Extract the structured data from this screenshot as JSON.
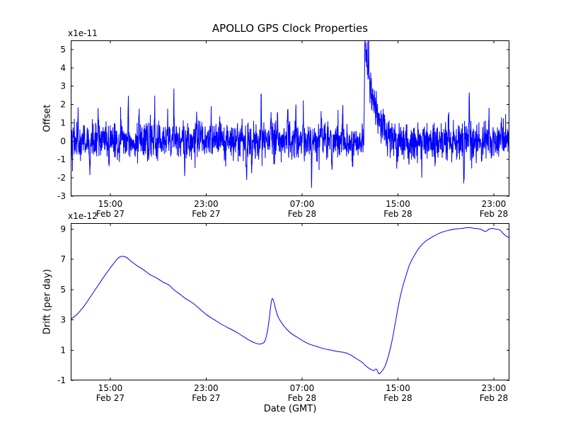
{
  "chart_data": {
    "type": "line",
    "title": "APOLLO GPS Clock Properties",
    "xlabel": "Date (GMT)",
    "line_color": "#0000ff",
    "x_axis_note": "hours since Feb 27 00:00 GMT",
    "charts": [
      {
        "name": "offset",
        "ylabel": "Offset",
        "scale_label": "x1e-11",
        "x_domain": [
          11.7,
          48.3
        ],
        "ylim": [
          -3,
          5.5
        ],
        "yticks": [
          -3,
          -2,
          -1,
          0,
          1,
          2,
          3,
          4,
          5
        ],
        "xticks": [
          {
            "x": 15,
            "time": "15:00",
            "date": "Feb 27"
          },
          {
            "x": 23,
            "time": "23:00",
            "date": "Feb 27"
          },
          {
            "x": 31,
            "time": "07:00",
            "date": "Feb 28"
          },
          {
            "x": 39,
            "time": "15:00",
            "date": "Feb 28"
          },
          {
            "x": 47,
            "time": "23:00",
            "date": "Feb 28"
          }
        ],
        "signal": {
          "kind": "noise",
          "baseline": 0,
          "std": 0.5,
          "n": 2200,
          "seed": 42,
          "spikes": [
            {
              "x": 12.3,
              "a": 1.1
            },
            {
              "x": 13.3,
              "a": -2.3
            },
            {
              "x": 14.0,
              "a": 1.3
            },
            {
              "x": 14.9,
              "a": -1.4
            },
            {
              "x": 15.9,
              "a": 1.6
            },
            {
              "x": 16.5,
              "a": 1.8
            },
            {
              "x": 17.4,
              "a": 1.9
            },
            {
              "x": 18.2,
              "a": -1.3
            },
            {
              "x": 18.7,
              "a": 1.7
            },
            {
              "x": 19.8,
              "a": 1.5
            },
            {
              "x": 20.3,
              "a": 2.1
            },
            {
              "x": 21.2,
              "a": -1.3
            },
            {
              "x": 22.2,
              "a": 1.5
            },
            {
              "x": 23.4,
              "a": 1.4
            },
            {
              "x": 24.6,
              "a": -1.3
            },
            {
              "x": 25.6,
              "a": 1.3
            },
            {
              "x": 26.35,
              "a": -2.4
            },
            {
              "x": 26.8,
              "a": -1.9
            },
            {
              "x": 27.6,
              "a": 1.9
            },
            {
              "x": 28.4,
              "a": 1.5
            },
            {
              "x": 28.95,
              "a": 2.2
            },
            {
              "x": 29.8,
              "a": 2.2
            },
            {
              "x": 30.5,
              "a": 1.5
            },
            {
              "x": 31.1,
              "a": 1.9
            },
            {
              "x": 31.8,
              "a": -2.2
            },
            {
              "x": 32.6,
              "a": 1.7
            },
            {
              "x": 33.5,
              "a": -1.6
            },
            {
              "x": 34.4,
              "a": 1.6
            },
            {
              "x": 35.2,
              "a": -1.3
            },
            {
              "x": 36.55,
              "a": 1.6
            },
            {
              "x": 36.9,
              "a": 1.2
            },
            {
              "x": 37.8,
              "a": 1.4
            },
            {
              "x": 38.9,
              "a": -1.2
            },
            {
              "x": 39.9,
              "a": -1.5
            },
            {
              "x": 41.0,
              "a": -1.7
            },
            {
              "x": 42.1,
              "a": -1.2
            },
            {
              "x": 43.2,
              "a": 1.3
            },
            {
              "x": 44.5,
              "a": -2.6
            },
            {
              "x": 44.95,
              "a": 2.9
            },
            {
              "x": 46.0,
              "a": -1.2
            },
            {
              "x": 46.6,
              "a": 1.4
            },
            {
              "x": 47.6,
              "a": 1.3
            }
          ],
          "big_spike": {
            "x": 36.25,
            "a": 5.5,
            "tau": 0.7
          }
        }
      },
      {
        "name": "drift",
        "ylabel": "Drift (per day)",
        "scale_label": "x1e-12",
        "x_domain": [
          11.7,
          48.3
        ],
        "ylim": [
          -1,
          9.4
        ],
        "yticks": [
          -1,
          1,
          3,
          5,
          7,
          9
        ],
        "xticks": [
          {
            "x": 15,
            "time": "15:00",
            "date": "Feb 27"
          },
          {
            "x": 23,
            "time": "23:00",
            "date": "Feb 27"
          },
          {
            "x": 31,
            "time": "07:00",
            "date": "Feb 28"
          },
          {
            "x": 39,
            "time": "15:00",
            "date": "Feb 28"
          },
          {
            "x": 47,
            "time": "23:00",
            "date": "Feb 28"
          }
        ],
        "signal": {
          "kind": "points",
          "points": [
            [
              11.7,
              3.05
            ],
            [
              12.2,
              3.35
            ],
            [
              12.8,
              3.9
            ],
            [
              13.4,
              4.6
            ],
            [
              14.0,
              5.3
            ],
            [
              14.6,
              6.0
            ],
            [
              15.2,
              6.65
            ],
            [
              15.6,
              7.05
            ],
            [
              15.9,
              7.2
            ],
            [
              16.3,
              7.15
            ],
            [
              16.7,
              6.9
            ],
            [
              17.2,
              6.6
            ],
            [
              17.8,
              6.3
            ],
            [
              18.3,
              6.0
            ],
            [
              18.9,
              5.75
            ],
            [
              19.4,
              5.5
            ],
            [
              19.9,
              5.3
            ],
            [
              20.3,
              5.0
            ],
            [
              20.8,
              4.7
            ],
            [
              21.3,
              4.4
            ],
            [
              21.9,
              4.1
            ],
            [
              22.5,
              3.7
            ],
            [
              23.1,
              3.3
            ],
            [
              23.7,
              3.0
            ],
            [
              24.3,
              2.7
            ],
            [
              24.9,
              2.45
            ],
            [
              25.5,
              2.2
            ],
            [
              26.0,
              1.95
            ],
            [
              26.5,
              1.7
            ],
            [
              27.0,
              1.5
            ],
            [
              27.4,
              1.4
            ],
            [
              27.7,
              1.45
            ],
            [
              27.9,
              1.6
            ],
            [
              28.1,
              2.2
            ],
            [
              28.25,
              3.0
            ],
            [
              28.4,
              4.0
            ],
            [
              28.5,
              4.4
            ],
            [
              28.65,
              4.2
            ],
            [
              28.8,
              3.7
            ],
            [
              29.0,
              3.2
            ],
            [
              29.3,
              2.8
            ],
            [
              29.7,
              2.4
            ],
            [
              30.1,
              2.1
            ],
            [
              30.6,
              1.85
            ],
            [
              31.1,
              1.6
            ],
            [
              31.6,
              1.4
            ],
            [
              32.2,
              1.25
            ],
            [
              32.8,
              1.1
            ],
            [
              33.4,
              1.0
            ],
            [
              34.0,
              0.9
            ],
            [
              34.5,
              0.85
            ],
            [
              35.0,
              0.7
            ],
            [
              35.5,
              0.45
            ],
            [
              36.0,
              0.2
            ],
            [
              36.4,
              -0.1
            ],
            [
              36.8,
              -0.3
            ],
            [
              37.0,
              -0.35
            ],
            [
              37.2,
              -0.25
            ],
            [
              37.4,
              -0.55
            ],
            [
              37.6,
              -0.45
            ],
            [
              37.9,
              -0.1
            ],
            [
              38.2,
              0.6
            ],
            [
              38.5,
              1.6
            ],
            [
              38.8,
              2.9
            ],
            [
              39.1,
              4.2
            ],
            [
              39.4,
              5.2
            ],
            [
              39.7,
              6.0
            ],
            [
              40.0,
              6.7
            ],
            [
              40.4,
              7.3
            ],
            [
              40.8,
              7.8
            ],
            [
              41.3,
              8.2
            ],
            [
              41.9,
              8.5
            ],
            [
              42.5,
              8.75
            ],
            [
              43.1,
              8.9
            ],
            [
              43.7,
              9.0
            ],
            [
              44.3,
              9.05
            ],
            [
              44.9,
              9.1
            ],
            [
              45.4,
              9.05
            ],
            [
              45.9,
              9.0
            ],
            [
              46.3,
              8.85
            ],
            [
              46.6,
              9.0
            ],
            [
              46.9,
              9.05
            ],
            [
              47.2,
              9.0
            ],
            [
              47.5,
              8.95
            ],
            [
              47.8,
              8.7
            ],
            [
              48.1,
              8.5
            ],
            [
              48.3,
              8.45
            ]
          ]
        }
      }
    ]
  }
}
